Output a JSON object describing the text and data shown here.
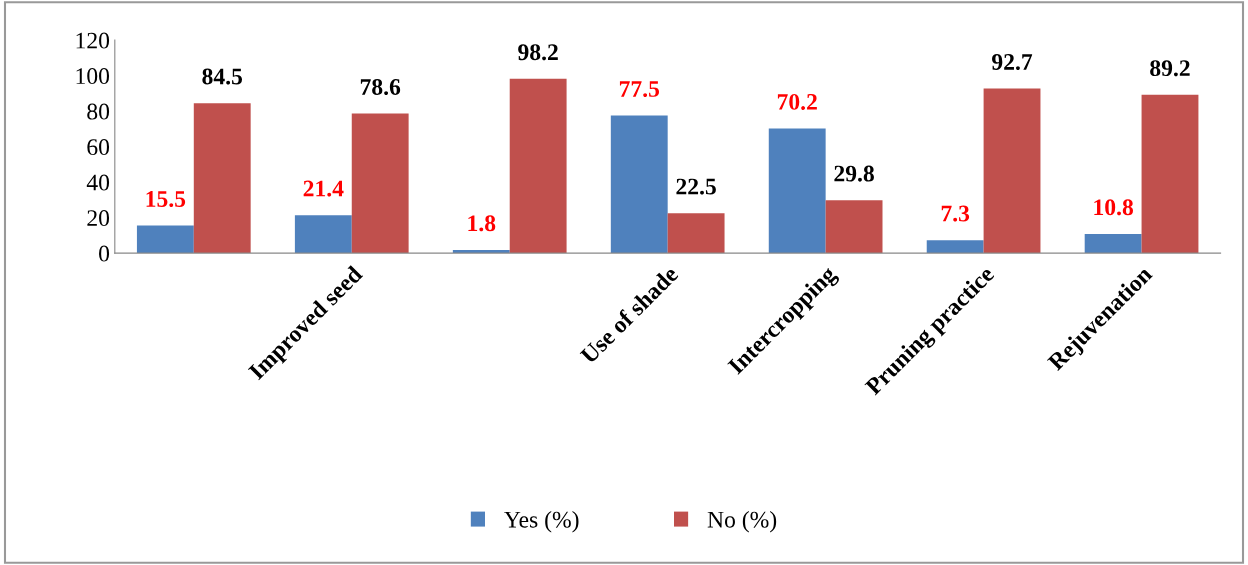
{
  "chart_data": {
    "type": "bar",
    "categories": [
      null,
      "Improved seed",
      null,
      "Use of shade",
      "Intercropping",
      "Pruning practice",
      "Rejuvenation"
    ],
    "series": [
      {
        "name": "Yes (%)",
        "color": "#4f81bd",
        "values": [
          15.5,
          21.4,
          1.8,
          77.5,
          70.2,
          7.3,
          10.8
        ]
      },
      {
        "name": "No (%)",
        "color": "#c0504d",
        "values": [
          84.5,
          78.6,
          98.2,
          22.5,
          29.8,
          92.7,
          89.2
        ]
      }
    ],
    "ylim": [
      0,
      120
    ],
    "yticks": [
      0,
      20,
      40,
      60,
      80,
      100,
      120
    ],
    "data_labels": true,
    "grid": false,
    "legend": "bottom"
  }
}
